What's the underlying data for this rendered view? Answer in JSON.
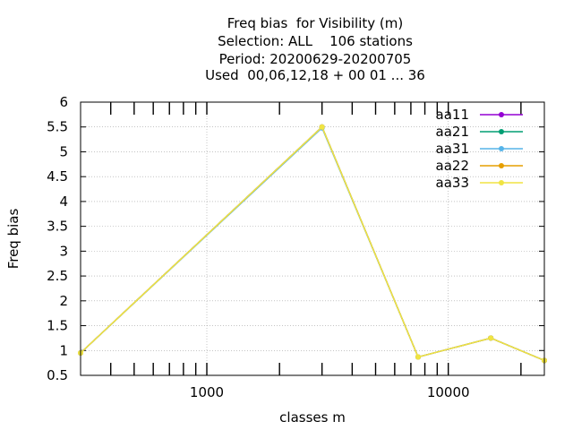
{
  "title_lines": [
    "Freq bias  for Visibility (m)",
    "Selection: ALL    106 stations",
    "Period: 20200629-20200705",
    "Used  00,06,12,18 + 00 01 ... 36"
  ],
  "chart_data": {
    "type": "line",
    "xlabel": "classes m",
    "ylabel": "Freq bias",
    "xscale": "log",
    "xlim": [
      300,
      25000
    ],
    "ylim": [
      0.5,
      6
    ],
    "grid": true,
    "legend_position": "top-right",
    "x_ticks": [
      {
        "value": 1000,
        "label": "1000"
      },
      {
        "value": 10000,
        "label": "10000"
      }
    ],
    "y_ticks": [
      {
        "value": 0.5,
        "label": "0.5"
      },
      {
        "value": 1,
        "label": "1"
      },
      {
        "value": 1.5,
        "label": "1.5"
      },
      {
        "value": 2,
        "label": "2"
      },
      {
        "value": 2.5,
        "label": "2.5"
      },
      {
        "value": 3,
        "label": "3"
      },
      {
        "value": 3.5,
        "label": "3.5"
      },
      {
        "value": 4,
        "label": "4"
      },
      {
        "value": 4.5,
        "label": "4.5"
      },
      {
        "value": 5,
        "label": "5"
      },
      {
        "value": 5.5,
        "label": "5.5"
      },
      {
        "value": 6,
        "label": "6"
      }
    ],
    "x": [
      300,
      3000,
      7500,
      15000,
      25000
    ],
    "series": [
      {
        "name": "aa11",
        "color": "#9400d3",
        "values": [
          0.95,
          5.5,
          0.87,
          1.25,
          0.8
        ]
      },
      {
        "name": "aa21",
        "color": "#009e73",
        "values": [
          0.95,
          5.5,
          0.87,
          1.25,
          0.8
        ]
      },
      {
        "name": "aa31",
        "color": "#56b4e9",
        "values": [
          0.95,
          5.48,
          0.87,
          1.25,
          0.8
        ]
      },
      {
        "name": "aa22",
        "color": "#e69f00",
        "values": [
          0.95,
          5.5,
          0.87,
          1.25,
          0.8
        ]
      },
      {
        "name": "aa33",
        "color": "#f0e442",
        "values": [
          0.95,
          5.5,
          0.87,
          1.25,
          0.8
        ]
      }
    ]
  }
}
